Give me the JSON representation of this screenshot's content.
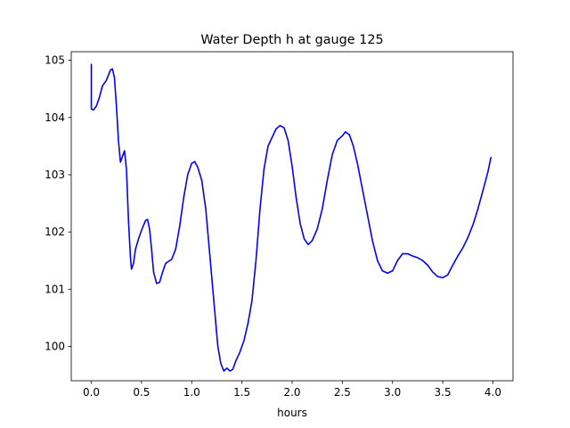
{
  "chart_data": {
    "type": "line",
    "title": "Water Depth h at gauge 125",
    "xlabel": "hours",
    "ylabel": "",
    "xlim": [
      -0.2,
      4.2
    ],
    "ylim": [
      99.4,
      105.15
    ],
    "x_ticks": [
      0.0,
      0.5,
      1.0,
      1.5,
      2.0,
      2.5,
      3.0,
      3.5,
      4.0
    ],
    "x_tick_labels": [
      "0.0",
      "0.5",
      "1.0",
      "1.5",
      "2.0",
      "2.5",
      "3.0",
      "3.5",
      "4.0"
    ],
    "y_ticks": [
      100,
      101,
      102,
      103,
      104,
      105
    ],
    "y_tick_labels": [
      "100",
      "101",
      "102",
      "103",
      "104",
      "105"
    ],
    "grid": false,
    "series": [
      {
        "color": "#0000ff",
        "points": [
          [
            0.0,
            104.93
          ],
          [
            0.0,
            104.15
          ],
          [
            0.02,
            104.13
          ],
          [
            0.05,
            104.2
          ],
          [
            0.08,
            104.35
          ],
          [
            0.11,
            104.55
          ],
          [
            0.15,
            104.65
          ],
          [
            0.19,
            104.83
          ],
          [
            0.21,
            104.85
          ],
          [
            0.23,
            104.7
          ],
          [
            0.25,
            104.2
          ],
          [
            0.27,
            103.6
          ],
          [
            0.29,
            103.22
          ],
          [
            0.31,
            103.32
          ],
          [
            0.33,
            103.42
          ],
          [
            0.35,
            103.1
          ],
          [
            0.37,
            102.2
          ],
          [
            0.39,
            101.55
          ],
          [
            0.4,
            101.35
          ],
          [
            0.42,
            101.45
          ],
          [
            0.44,
            101.7
          ],
          [
            0.47,
            101.88
          ],
          [
            0.5,
            102.03
          ],
          [
            0.54,
            102.2
          ],
          [
            0.56,
            102.22
          ],
          [
            0.58,
            102.05
          ],
          [
            0.6,
            101.7
          ],
          [
            0.62,
            101.3
          ],
          [
            0.65,
            101.1
          ],
          [
            0.68,
            101.12
          ],
          [
            0.71,
            101.3
          ],
          [
            0.74,
            101.45
          ],
          [
            0.78,
            101.5
          ],
          [
            0.8,
            101.52
          ],
          [
            0.84,
            101.7
          ],
          [
            0.88,
            102.1
          ],
          [
            0.92,
            102.6
          ],
          [
            0.96,
            103.0
          ],
          [
            1.0,
            103.2
          ],
          [
            1.03,
            103.23
          ],
          [
            1.06,
            103.13
          ],
          [
            1.1,
            102.9
          ],
          [
            1.14,
            102.4
          ],
          [
            1.18,
            101.6
          ],
          [
            1.22,
            100.8
          ],
          [
            1.26,
            100.0
          ],
          [
            1.29,
            99.7
          ],
          [
            1.32,
            99.57
          ],
          [
            1.35,
            99.62
          ],
          [
            1.38,
            99.57
          ],
          [
            1.41,
            99.6
          ],
          [
            1.44,
            99.75
          ],
          [
            1.48,
            99.9
          ],
          [
            1.52,
            100.1
          ],
          [
            1.56,
            100.4
          ],
          [
            1.6,
            100.8
          ],
          [
            1.64,
            101.5
          ],
          [
            1.68,
            102.4
          ],
          [
            1.72,
            103.1
          ],
          [
            1.76,
            103.5
          ],
          [
            1.8,
            103.65
          ],
          [
            1.84,
            103.8
          ],
          [
            1.88,
            103.86
          ],
          [
            1.92,
            103.82
          ],
          [
            1.96,
            103.6
          ],
          [
            2.0,
            103.15
          ],
          [
            2.04,
            102.6
          ],
          [
            2.08,
            102.15
          ],
          [
            2.12,
            101.88
          ],
          [
            2.16,
            101.78
          ],
          [
            2.2,
            101.85
          ],
          [
            2.25,
            102.05
          ],
          [
            2.3,
            102.4
          ],
          [
            2.35,
            102.9
          ],
          [
            2.4,
            103.35
          ],
          [
            2.45,
            103.6
          ],
          [
            2.5,
            103.68
          ],
          [
            2.53,
            103.75
          ],
          [
            2.57,
            103.7
          ],
          [
            2.61,
            103.5
          ],
          [
            2.65,
            103.2
          ],
          [
            2.7,
            102.75
          ],
          [
            2.75,
            102.3
          ],
          [
            2.8,
            101.85
          ],
          [
            2.85,
            101.5
          ],
          [
            2.9,
            101.32
          ],
          [
            2.95,
            101.28
          ],
          [
            3.0,
            101.32
          ],
          [
            3.05,
            101.5
          ],
          [
            3.1,
            101.62
          ],
          [
            3.15,
            101.62
          ],
          [
            3.2,
            101.58
          ],
          [
            3.25,
            101.55
          ],
          [
            3.3,
            101.5
          ],
          [
            3.35,
            101.42
          ],
          [
            3.4,
            101.3
          ],
          [
            3.45,
            101.22
          ],
          [
            3.5,
            101.2
          ],
          [
            3.55,
            101.25
          ],
          [
            3.6,
            101.42
          ],
          [
            3.65,
            101.58
          ],
          [
            3.7,
            101.72
          ],
          [
            3.75,
            101.9
          ],
          [
            3.8,
            102.12
          ],
          [
            3.85,
            102.4
          ],
          [
            3.9,
            102.72
          ],
          [
            3.95,
            103.05
          ],
          [
            3.98,
            103.3
          ]
        ]
      }
    ]
  }
}
